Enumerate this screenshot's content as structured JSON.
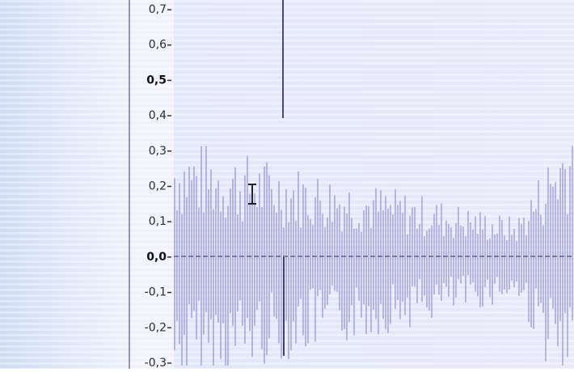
{
  "ruler": {
    "labels": [
      "0,7",
      "0,6",
      "0,5",
      "0,4",
      "0,3",
      "0,2",
      "0,1",
      "0,0",
      "-0,1",
      "-0,2",
      "-0,3"
    ]
  }
}
